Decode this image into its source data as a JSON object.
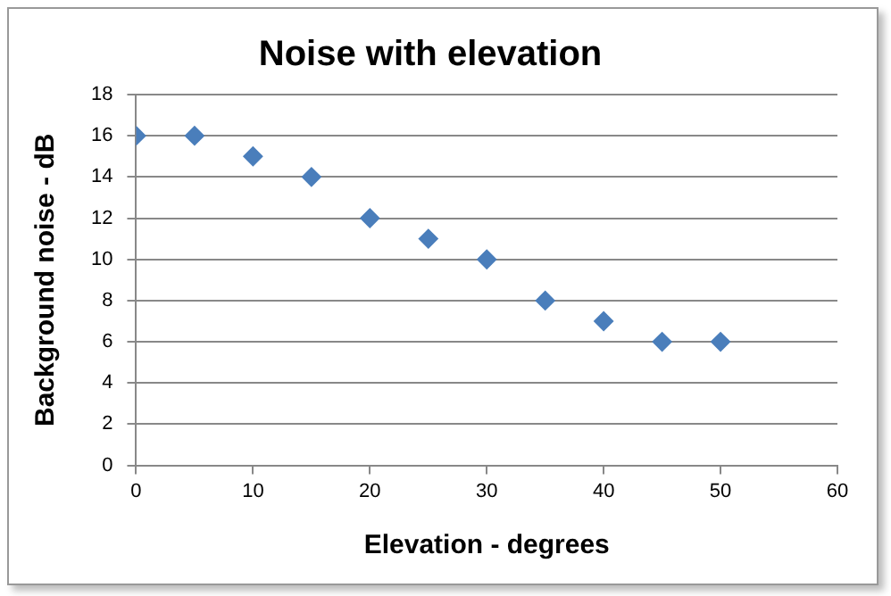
{
  "chart_data": {
    "type": "scatter",
    "title": "Noise with elevation",
    "xlabel": "Elevation - degrees",
    "ylabel": "Background noise - dB",
    "x": [
      0,
      5,
      10,
      15,
      20,
      25,
      30,
      35,
      40,
      45,
      50
    ],
    "series": [
      {
        "color": "#4a7ebb",
        "values": [
          16,
          16,
          15,
          14,
          12,
          11,
          10,
          8,
          7,
          6,
          6
        ]
      }
    ],
    "xlim": [
      0,
      60
    ],
    "xticks": [
      0,
      10,
      20,
      30,
      40,
      50,
      60
    ],
    "ylim": [
      0,
      18
    ],
    "yticks": [
      0,
      2,
      4,
      6,
      8,
      10,
      12,
      14,
      16,
      18
    ],
    "grid": "y",
    "legend": false,
    "marker": "diamond"
  }
}
